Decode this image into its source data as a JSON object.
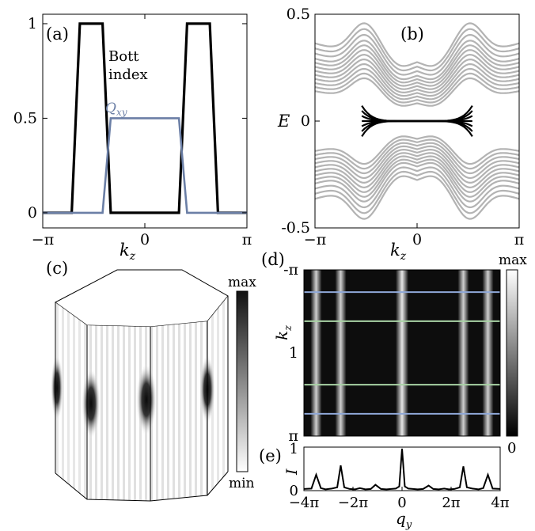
{
  "chart_data": [
    {
      "panel": "(a)",
      "type": "line",
      "xlabel": "k",
      "xlabel_sub": "z",
      "xticks": [
        "−π",
        "0",
        "π"
      ],
      "xlim": [
        -3.14159,
        3.14159
      ],
      "yticks": [
        "0",
        "0.5",
        "1"
      ],
      "ylim": [
        -0.08,
        1.05
      ],
      "series": [
        {
          "name": "Bott index",
          "color": "#000000",
          "x": [
            -3.14159,
            -2.25,
            -2.0,
            -1.3,
            -1.05,
            1.05,
            1.3,
            2.0,
            2.25,
            3.14159
          ],
          "y": [
            0,
            0,
            1,
            1,
            0,
            0,
            1,
            1,
            0,
            0
          ]
        },
        {
          "name": "Q",
          "name_sub": "xy",
          "color": "#6b7fa6",
          "x": [
            -3.14159,
            -1.3,
            -1.05,
            1.05,
            1.3,
            3.14159
          ],
          "y": [
            0,
            0,
            0.5,
            0.5,
            0,
            0
          ]
        }
      ],
      "annotations": [
        "Bott",
        "index"
      ]
    },
    {
      "panel": "(b)",
      "type": "line",
      "ylabel": "E",
      "xlabel": "k",
      "xlabel_sub": "z",
      "xticks": [
        "−π",
        "0",
        "π"
      ],
      "xlim": [
        -3.14159,
        3.14159
      ],
      "yticks": [
        "-0.5",
        "0",
        "0.5"
      ],
      "ylim": [
        -0.5,
        0.5
      ],
      "band_color": "#b3b3b3",
      "edge_color": "#000000",
      "band_offsets": [
        0.06,
        0.075,
        0.09,
        0.105,
        0.12,
        0.135,
        0.15,
        0.165,
        0.18,
        0.2,
        0.22,
        0.24
      ],
      "edge_state": {
        "x": [
          -1.7,
          1.7
        ],
        "y": 0
      }
    },
    {
      "panel": "(c)",
      "type": "heatmap",
      "colorbar_ticks": [
        "max",
        "min"
      ],
      "colorbar_colors": [
        "#111111",
        "#ffffff"
      ]
    },
    {
      "panel": "(d)",
      "type": "heatmap",
      "ylabel": "k",
      "ylabel_sub": "z",
      "yticks": [
        "-π",
        "1",
        "π"
      ],
      "colorbar_ticks": [
        "max",
        "0"
      ],
      "bright_columns_qy": [
        -3.5,
        -2.5,
        0,
        2.5,
        3.5
      ],
      "horizontal_lines": [
        {
          "kz": -2.3,
          "color": "#8fa8d8"
        },
        {
          "kz": -1.2,
          "color": "#a9d3a5"
        },
        {
          "kz": 1.2,
          "color": "#a9d3a5"
        },
        {
          "kz": 2.3,
          "color": "#8fa8d8"
        }
      ]
    },
    {
      "panel": "(e)",
      "type": "line",
      "ylabel": "I",
      "xlabel": "q",
      "xlabel_sub": "y",
      "xticks": [
        "−4π",
        "−2π",
        "0",
        "2π",
        "4π"
      ],
      "xlim": [
        -12.566,
        12.566
      ],
      "yticks": [
        "0",
        "1"
      ],
      "ylim": [
        0,
        1
      ],
      "x": [
        -12.566,
        -11.6,
        -11.0,
        -10.4,
        -9.8,
        -9.0,
        -8.3,
        -7.85,
        -7.4,
        -6.7,
        -6.0,
        -5.4,
        -4.7,
        -4.0,
        -3.4,
        -2.7,
        -2.0,
        -1.4,
        -0.8,
        -0.35,
        0,
        0.35,
        0.8,
        1.4,
        2.0,
        2.7,
        3.4,
        4.0,
        4.7,
        5.4,
        6.0,
        6.7,
        7.4,
        7.85,
        8.3,
        9.0,
        9.8,
        10.4,
        11.0,
        11.6,
        12.566
      ],
      "y": [
        0.04,
        0.05,
        0.38,
        0.06,
        0.03,
        0.05,
        0.08,
        0.6,
        0.08,
        0.04,
        0.03,
        0.06,
        0.03,
        0.04,
        0.14,
        0.04,
        0.03,
        0.04,
        0.05,
        0.1,
        1.0,
        0.1,
        0.05,
        0.04,
        0.03,
        0.04,
        0.12,
        0.04,
        0.03,
        0.05,
        0.03,
        0.04,
        0.08,
        0.58,
        0.08,
        0.05,
        0.03,
        0.06,
        0.38,
        0.05,
        0.04
      ]
    }
  ]
}
